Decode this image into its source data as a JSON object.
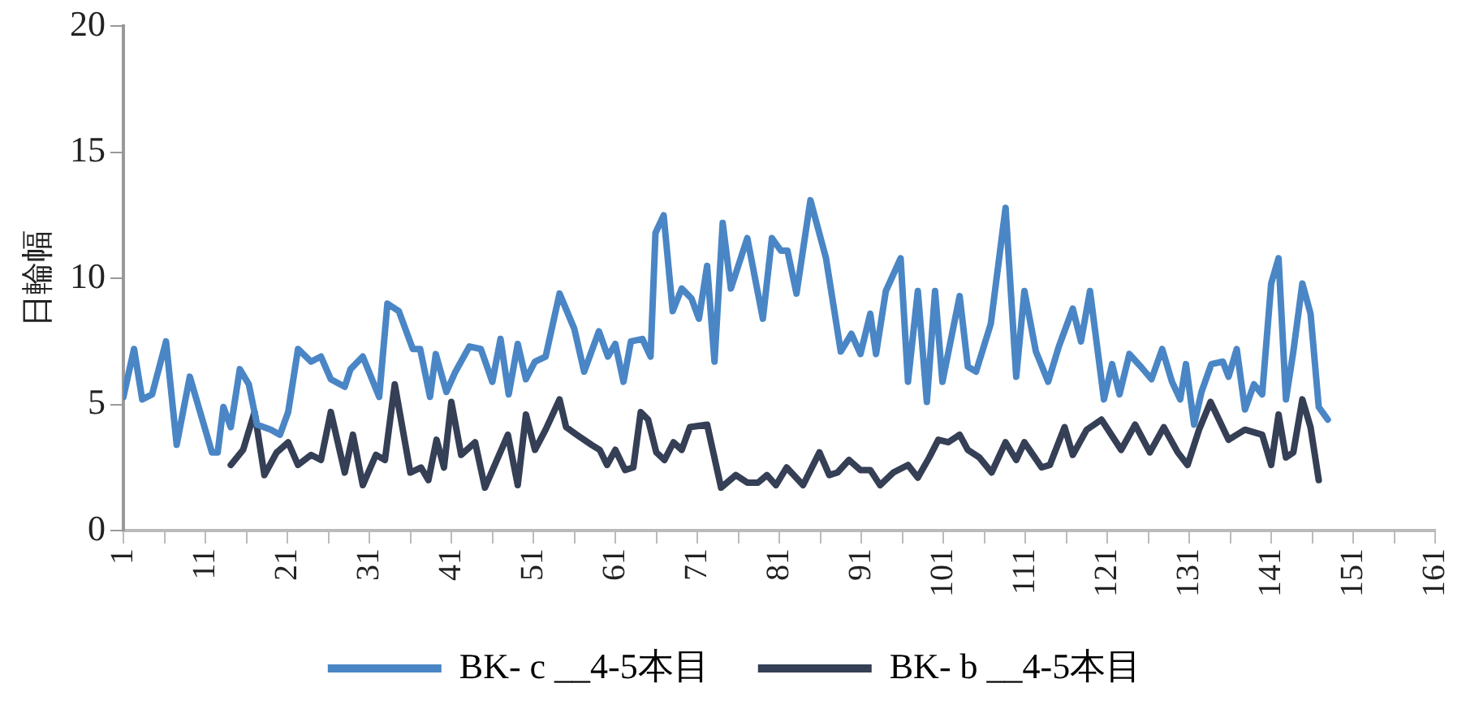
{
  "chart_data": {
    "type": "line",
    "ylabel": "日輪幅",
    "xlim": [
      1,
      161
    ],
    "xticks": [
      1,
      {
        "value": 6,
        "label": null
      },
      11,
      {
        "value": 16,
        "label": null
      },
      21,
      {
        "value": 26,
        "label": null
      },
      31,
      {
        "value": 36,
        "label": null
      },
      41,
      {
        "value": 46,
        "label": null
      },
      51,
      {
        "value": 56,
        "label": null
      },
      61,
      {
        "value": 66,
        "label": null
      },
      71,
      {
        "value": 76,
        "label": null
      },
      81,
      {
        "value": 86,
        "label": null
      },
      91,
      {
        "value": 96,
        "label": null
      },
      101,
      {
        "value": 106,
        "label": null
      },
      111,
      {
        "value": 116,
        "label": null
      },
      121,
      {
        "value": 126,
        "label": null
      },
      131,
      {
        "value": 136,
        "label": null
      },
      141,
      {
        "value": 146,
        "label": null
      },
      151,
      {
        "value": 156,
        "label": null
      },
      161
    ],
    "ylim": [
      0,
      20
    ],
    "yticks": [
      0,
      5,
      10,
      15,
      20
    ],
    "grid": false,
    "legend": "bottom",
    "marker": "none",
    "line_style": "solid",
    "series": [
      {
        "name": "BK- c __4-5本目",
        "color": "#4a86c5",
        "x": [
          1,
          2.3,
          3.3,
          4.5,
          6.2,
          7.5,
          9.1,
          11.8,
          12.5,
          13.2,
          14.1,
          15.2,
          16.3,
          17.3,
          19,
          20.1,
          21.1,
          22.3,
          23.9,
          25.1,
          26.3,
          28,
          28.7,
          30.2,
          32.2,
          33.2,
          34.6,
          36.3,
          37.2,
          38.4,
          39.1,
          40.4,
          41.5,
          43.2,
          44.6,
          46,
          47,
          48,
          49.1,
          50.1,
          51.2,
          52.5,
          54.2,
          56,
          57.2,
          59,
          60.1,
          61,
          62,
          62.9,
          64.3,
          65.3,
          65.9,
          66.9,
          68,
          69.1,
          70.3,
          71.2,
          72.2,
          73.1,
          74.1,
          75.1,
          77.1,
          79,
          80.1,
          81.2,
          82,
          83.1,
          84.8,
          86.7,
          88.5,
          89.8,
          90.9,
          92.1,
          92.8,
          94,
          95.8,
          96.7,
          97.9,
          99,
          100,
          100.9,
          103,
          104,
          105,
          106.8,
          108.6,
          109.9,
          110.9,
          112.3,
          113.8,
          115.1,
          116.8,
          117.8,
          118.9,
          120.6,
          121.6,
          122.5,
          123.7,
          125.1,
          126.4,
          127.7,
          128.9,
          129.9,
          130.6,
          131.6,
          132.5,
          133.7,
          135.1,
          135.8,
          136.8,
          137.8,
          138.9,
          139.9,
          141,
          141.9,
          142.8,
          143.7,
          144.8,
          145.8,
          146.8,
          147.9
        ],
        "values": [
          5.3,
          7.2,
          5.2,
          5.4,
          7.5,
          3.4,
          6.1,
          3.1,
          3.1,
          4.9,
          4.1,
          6.4,
          5.8,
          4.2,
          4.0,
          3.8,
          4.7,
          7.2,
          6.7,
          6.9,
          6.0,
          5.7,
          6.4,
          6.9,
          5.3,
          9.0,
          8.7,
          7.2,
          7.2,
          5.3,
          7.0,
          5.5,
          6.3,
          7.3,
          7.2,
          5.9,
          7.6,
          5.4,
          7.4,
          6.0,
          6.7,
          6.9,
          9.4,
          8.0,
          6.3,
          7.9,
          6.9,
          7.4,
          5.9,
          7.5,
          7.6,
          6.9,
          11.8,
          12.5,
          8.7,
          9.6,
          9.2,
          8.4,
          10.5,
          6.7,
          12.2,
          9.6,
          11.6,
          8.4,
          11.6,
          11.1,
          11.1,
          9.4,
          13.1,
          10.8,
          7.1,
          7.8,
          7.0,
          8.6,
          7.0,
          9.5,
          10.8,
          5.9,
          9.5,
          5.1,
          9.5,
          5.9,
          9.3,
          6.5,
          6.3,
          8.2,
          12.8,
          6.1,
          9.5,
          7.1,
          5.9,
          7.3,
          8.8,
          7.5,
          9.5,
          5.2,
          6.6,
          5.4,
          7.0,
          6.5,
          6.0,
          7.2,
          5.9,
          5.2,
          6.6,
          4.2,
          5.5,
          6.6,
          6.7,
          6.1,
          7.2,
          4.8,
          5.8,
          5.4,
          9.8,
          10.8,
          5.2,
          7.1,
          9.8,
          8.6,
          4.9,
          4.4
        ]
      },
      {
        "name": "BK- b __4-5本目",
        "color": "#353f55",
        "x": [
          14.1,
          15.6,
          17,
          18.2,
          19.7,
          21.1,
          22.3,
          23.9,
          25.1,
          26.3,
          28,
          29,
          30.2,
          31.8,
          32.9,
          34.1,
          36,
          37.3,
          38.2,
          39.2,
          40.1,
          41,
          42.2,
          43.9,
          45.1,
          46.3,
          47.9,
          49.1,
          50.1,
          51.2,
          52.5,
          54.2,
          55,
          56.3,
          58.1,
          59.1,
          60,
          61,
          62.2,
          63.2,
          64.1,
          65,
          66,
          67,
          68.1,
          69.1,
          70.1,
          72.2,
          73.9,
          75.7,
          77.1,
          78.4,
          79.5,
          80.6,
          81.9,
          83.9,
          85.9,
          87.1,
          88.1,
          89.5,
          90.9,
          92.1,
          93.3,
          94.9,
          96.7,
          97.9,
          99.3,
          100.4,
          101.6,
          103,
          104,
          105.4,
          106.9,
          108.6,
          109.9,
          110.9,
          113,
          114,
          115.8,
          116.8,
          118.5,
          120.3,
          122.7,
          124.4,
          126.2,
          127.9,
          129.6,
          130.8,
          132.2,
          133.6,
          135.8,
          137.8,
          139.9,
          141,
          141.9,
          142.8,
          143.7,
          144.8,
          145.8,
          146.8
        ],
        "values": [
          2.6,
          3.2,
          4.7,
          2.2,
          3.1,
          3.5,
          2.6,
          3.0,
          2.8,
          4.7,
          2.3,
          3.8,
          1.8,
          3.0,
          2.8,
          5.8,
          2.3,
          2.5,
          2.0,
          3.6,
          2.5,
          5.1,
          3.0,
          3.5,
          1.7,
          2.6,
          3.8,
          1.8,
          4.6,
          3.2,
          4.0,
          5.2,
          4.1,
          3.8,
          3.4,
          3.2,
          2.6,
          3.2,
          2.4,
          2.5,
          4.7,
          4.4,
          3.1,
          2.8,
          3.5,
          3.2,
          4.1,
          4.2,
          1.7,
          2.2,
          1.9,
          1.9,
          2.2,
          1.8,
          2.5,
          1.8,
          3.1,
          2.2,
          2.3,
          2.8,
          2.4,
          2.4,
          1.8,
          2.3,
          2.6,
          2.1,
          2.9,
          3.6,
          3.5,
          3.8,
          3.2,
          2.9,
          2.3,
          3.5,
          2.8,
          3.5,
          2.5,
          2.6,
          4.1,
          3.0,
          4.0,
          4.4,
          3.2,
          4.2,
          3.1,
          4.1,
          3.1,
          2.6,
          4.0,
          5.1,
          3.6,
          4.0,
          3.8,
          2.6,
          4.6,
          2.9,
          3.1,
          5.2,
          4.1,
          2.0
        ]
      }
    ]
  }
}
